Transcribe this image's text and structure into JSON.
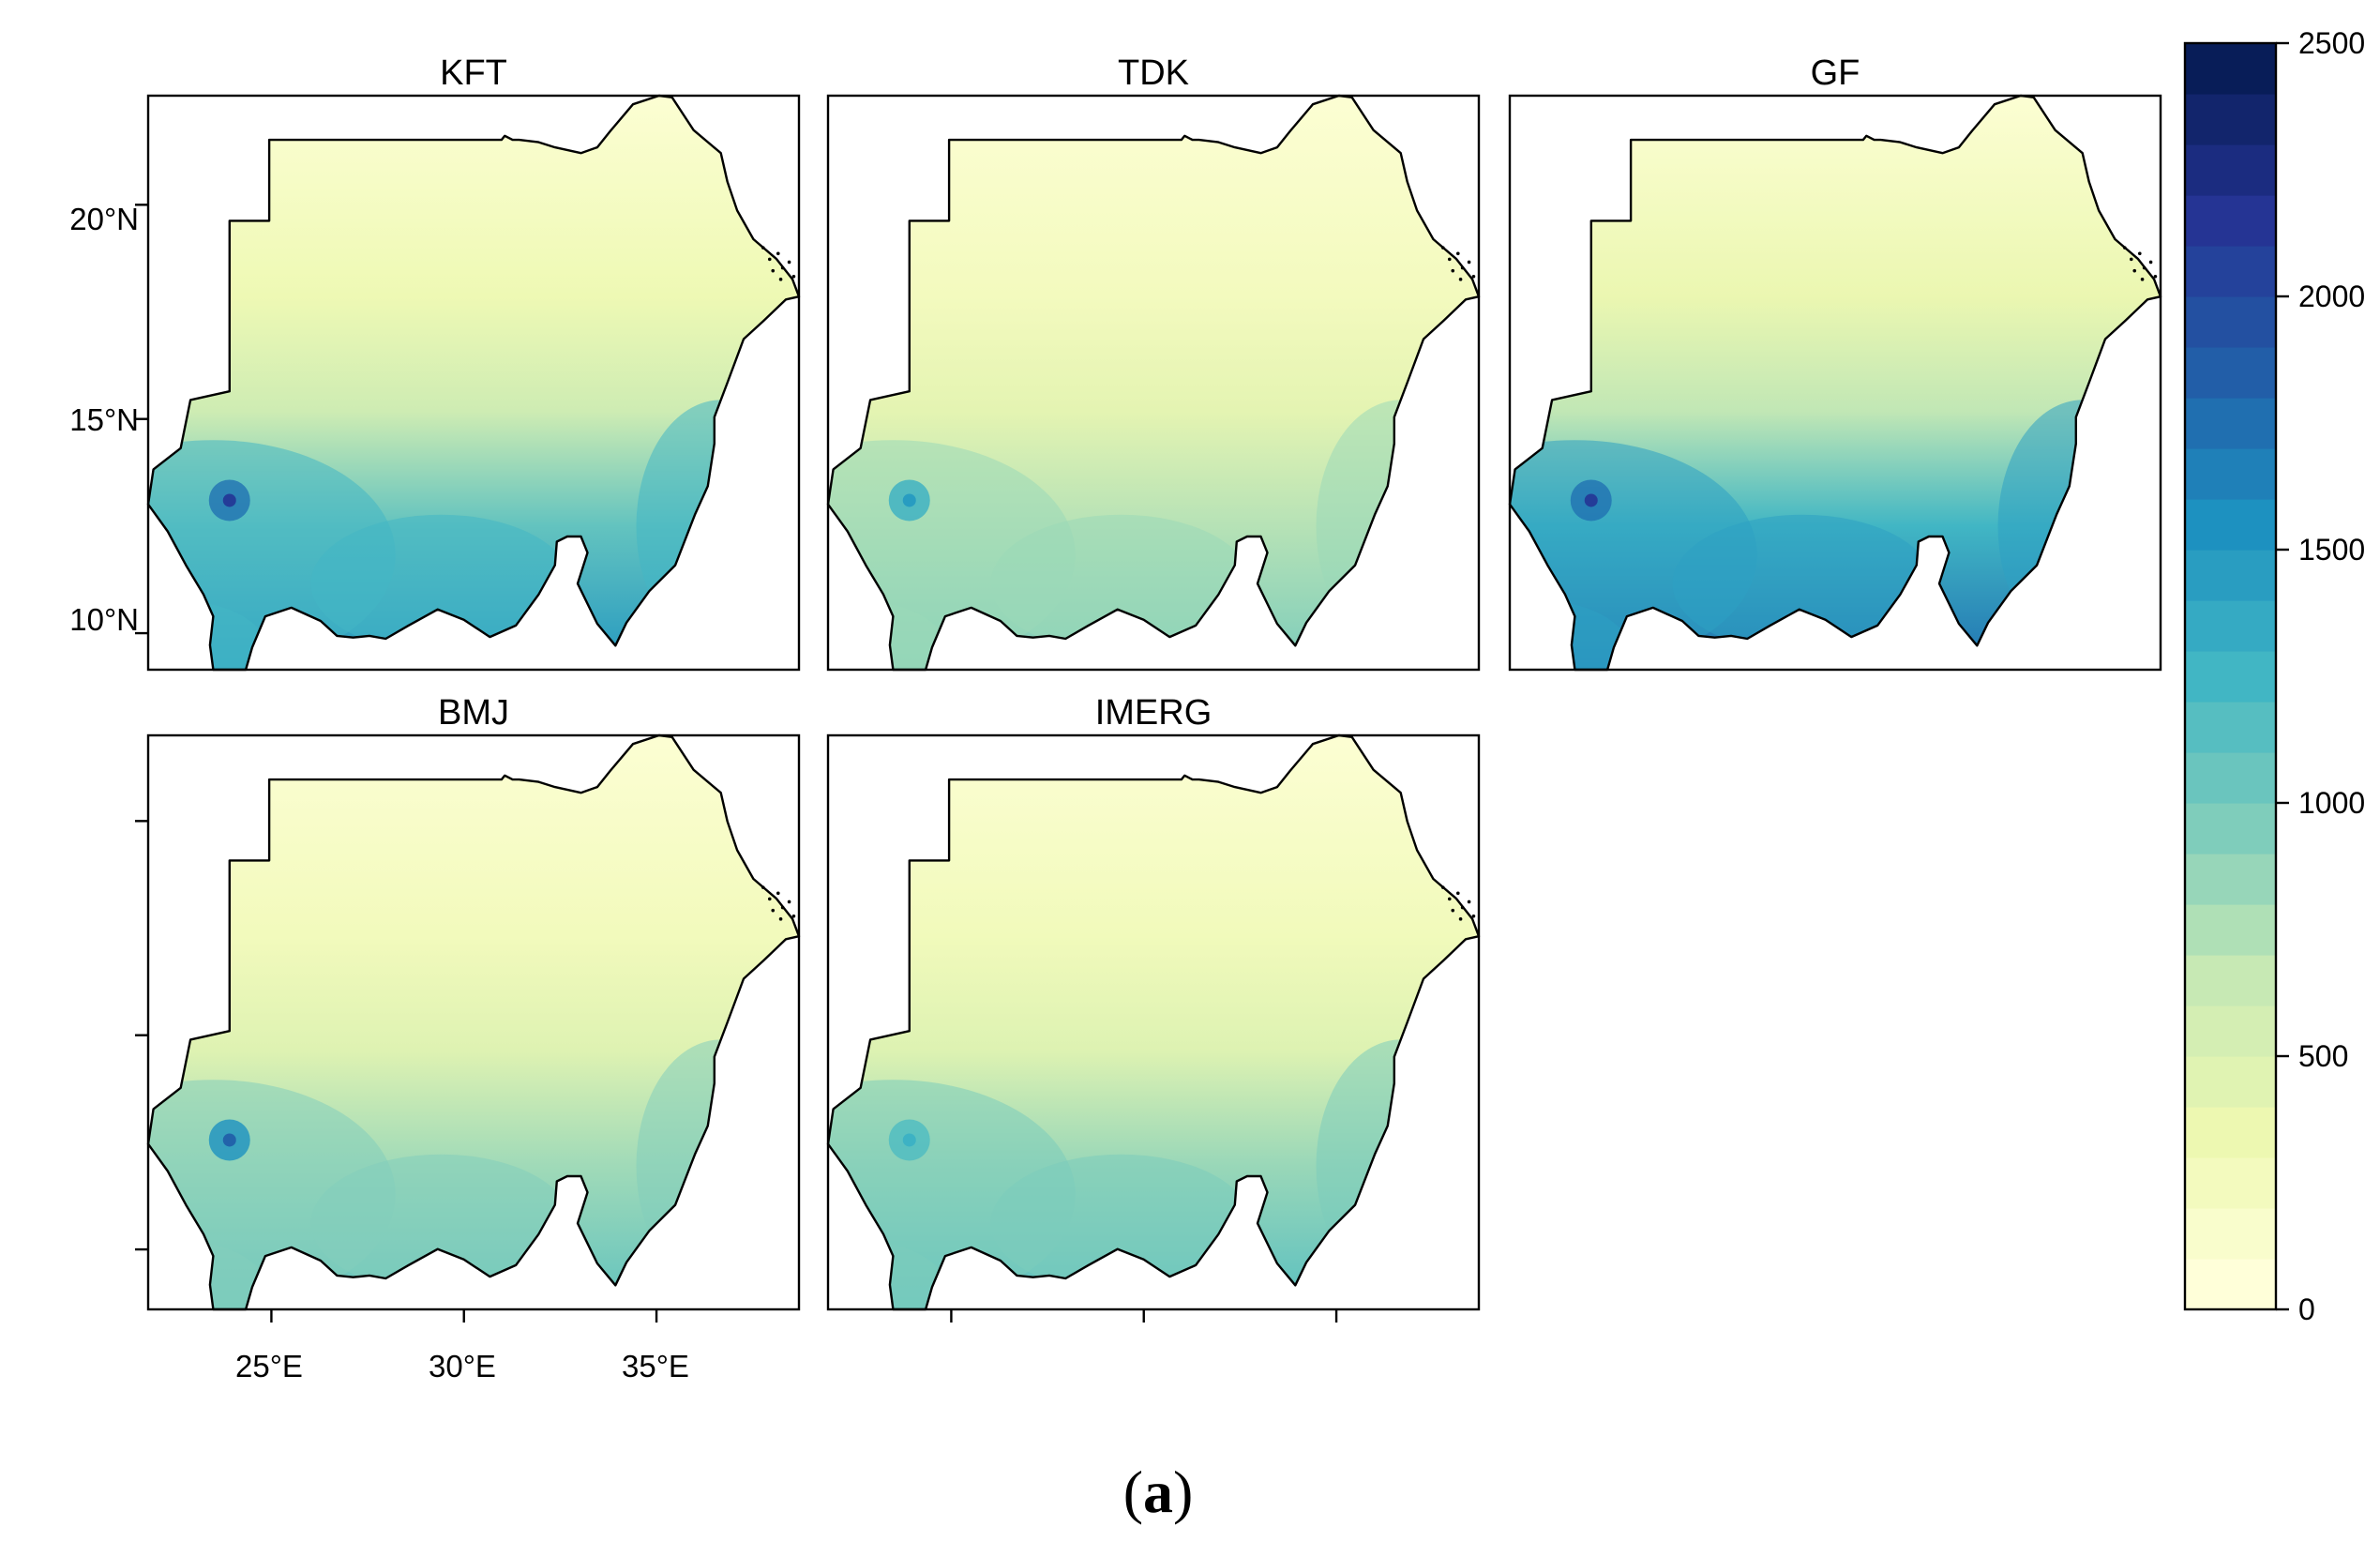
{
  "figure": {
    "caption": {
      "open": "(",
      "letter": "a",
      "close": ")"
    },
    "panels": [
      {
        "title": "KFT",
        "intensity": 0.82,
        "hotspot": 1.0
      },
      {
        "title": "TDK",
        "intensity": 0.42,
        "hotspot": 0.65
      },
      {
        "title": "GF",
        "intensity": 1.0,
        "hotspot": 1.0
      },
      {
        "title": "BMJ",
        "intensity": 0.52,
        "hotspot": 0.85
      },
      {
        "title": "IMERG",
        "intensity": 0.55,
        "hotspot": 0.55
      }
    ],
    "y_axis": {
      "labels": [
        "20°N",
        "15°N",
        "10°N"
      ],
      "values": [
        20,
        15,
        10
      ]
    },
    "x_axis": {
      "labels": [
        "25°E",
        "30°E",
        "35°E"
      ],
      "values": [
        25,
        30,
        35
      ]
    },
    "colorbar": {
      "ticks": [
        0,
        500,
        1000,
        1500,
        2000,
        2500
      ],
      "tick_labels": [
        "0",
        "500",
        "1000",
        "1500",
        "2000",
        "2500"
      ],
      "min": 0,
      "max": 2500,
      "colors": [
        "#ffffd9",
        "#edf8b1",
        "#c7e9b4",
        "#7fcdbb",
        "#41b6c4",
        "#1d91c0",
        "#225ea8",
        "#253494",
        "#081d58"
      ]
    }
  }
}
